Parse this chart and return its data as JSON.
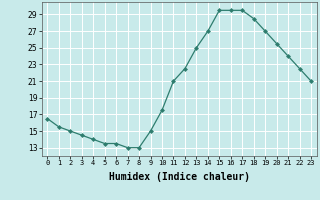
{
  "x": [
    0,
    1,
    2,
    3,
    4,
    5,
    6,
    7,
    8,
    9,
    10,
    11,
    12,
    13,
    14,
    15,
    16,
    17,
    18,
    19,
    20,
    21,
    22,
    23
  ],
  "y": [
    16.5,
    15.5,
    15.0,
    14.5,
    14.0,
    13.5,
    13.5,
    13.0,
    13.0,
    15.0,
    17.5,
    21.0,
    22.5,
    25.0,
    27.0,
    29.5,
    29.5,
    29.5,
    28.5,
    27.0,
    25.5,
    24.0,
    22.5,
    21.0
  ],
  "line_color": "#2e7d6e",
  "marker": "D",
  "marker_size": 2,
  "bg_color": "#c8eaea",
  "grid_color": "#ffffff",
  "xlabel": "Humidex (Indice chaleur)",
  "xlabel_fontsize": 7,
  "ylabel_ticks": [
    13,
    15,
    17,
    19,
    21,
    23,
    25,
    27,
    29
  ],
  "xtick_labels": [
    "0",
    "1",
    "2",
    "3",
    "4",
    "5",
    "6",
    "7",
    "8",
    "9",
    "10",
    "11",
    "12",
    "13",
    "14",
    "15",
    "16",
    "17",
    "18",
    "19",
    "20",
    "21",
    "22",
    "23"
  ],
  "xlim": [
    -0.5,
    23.5
  ],
  "ylim": [
    12.0,
    30.5
  ]
}
